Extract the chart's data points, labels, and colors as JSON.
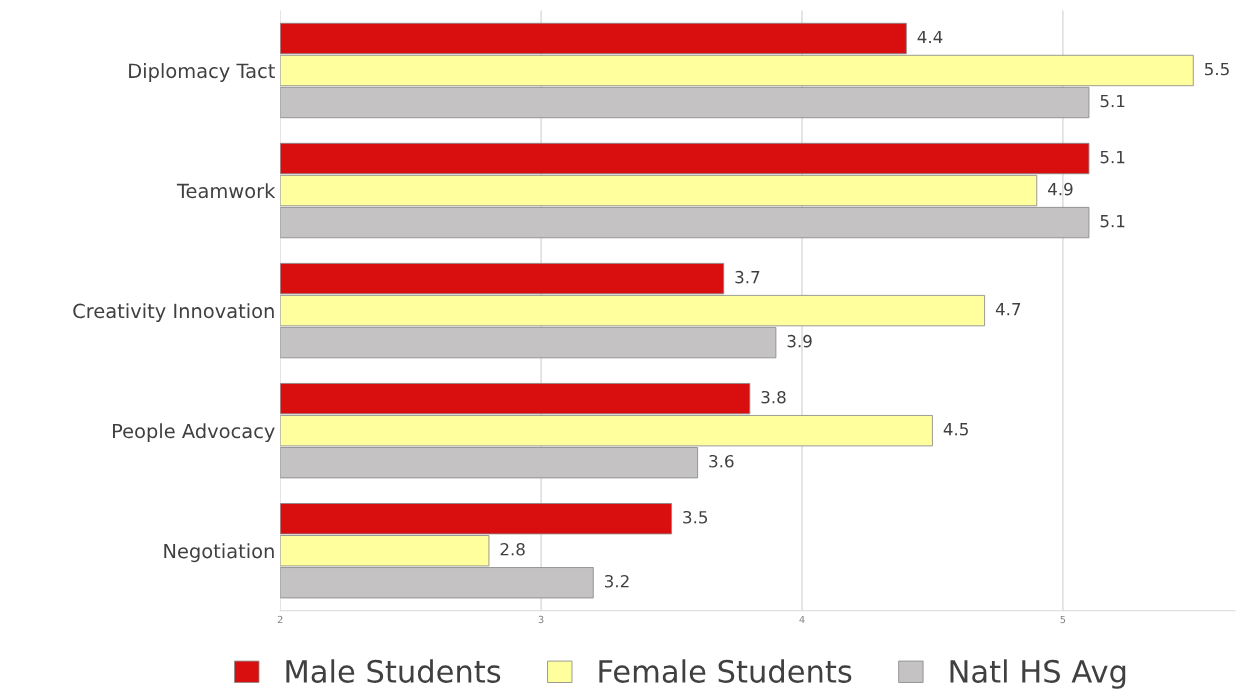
{
  "chart_data": {
    "type": "bar",
    "orientation": "horizontal",
    "categories": [
      "Diplomacy Tact",
      "Teamwork",
      "Creativity Innovation",
      "People Advocacy",
      "Negotiation"
    ],
    "series": [
      {
        "name": "Male Students",
        "color": "#d90f0f",
        "values": [
          4.4,
          5.1,
          3.7,
          3.8,
          3.5
        ]
      },
      {
        "name": "Female Students",
        "color": "#ffff9e",
        "values": [
          5.5,
          4.9,
          4.7,
          4.5,
          2.8
        ]
      },
      {
        "name": "Natl HS Avg",
        "color": "#c4c2c2",
        "values": [
          5.1,
          5.1,
          3.9,
          3.6,
          3.2
        ]
      }
    ],
    "xlim": [
      2,
      5.66
    ],
    "xticks": [
      2,
      3,
      4,
      5
    ],
    "grid": "x",
    "legend": "bottom",
    "data_labels": true
  }
}
